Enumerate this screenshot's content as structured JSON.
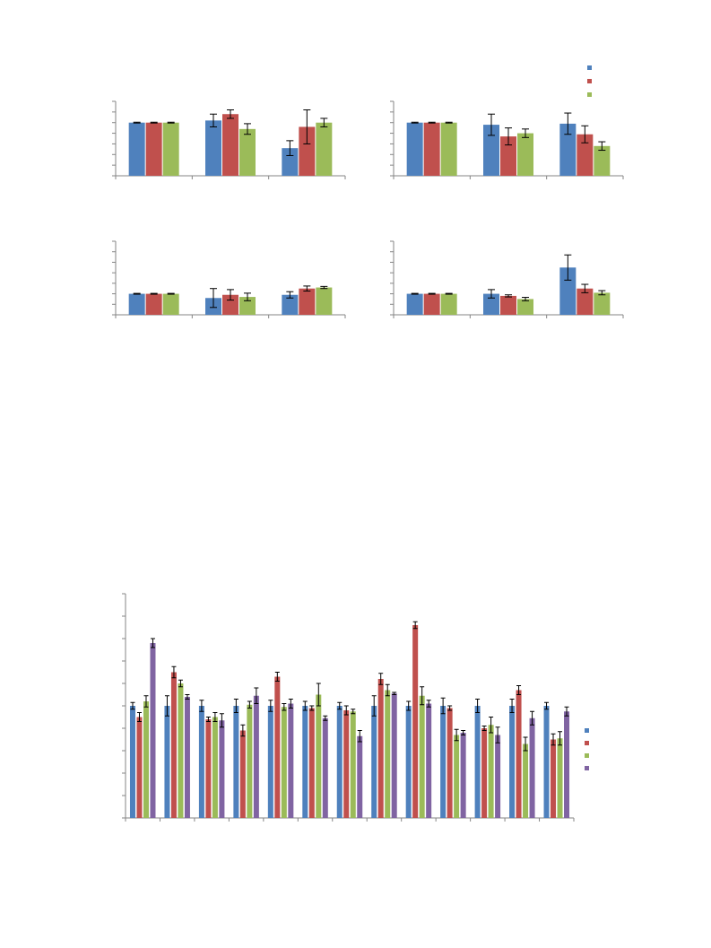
{
  "colors": {
    "blue": "#4F81BD",
    "red": "#C0504D",
    "green": "#9BBB59",
    "purple": "#8064A2"
  },
  "legend_top": {
    "items": [
      {
        "color": "#4F81BD",
        "label": ""
      },
      {
        "color": "#C0504D",
        "label": ""
      },
      {
        "color": "#9BBB59",
        "label": ""
      }
    ]
  },
  "legend_bottom": {
    "items": [
      {
        "color": "#4F81BD",
        "label": ""
      },
      {
        "color": "#C0504D",
        "label": ""
      },
      {
        "color": "#9BBB59",
        "label": ""
      },
      {
        "color": "#8064A2",
        "label": ""
      }
    ]
  },
  "chart_data": [
    {
      "type": "bar",
      "title": "",
      "xlabel": "",
      "ylabel": "",
      "ylim": [
        0,
        3.5
      ],
      "grid": false,
      "yticks": 7,
      "tick_labels_shown": false,
      "categories": [
        "",
        "",
        ""
      ],
      "series": [
        {
          "color": "#4F81BD",
          "values": [
            2.5,
            2.6,
            1.3
          ],
          "errors": [
            0.02,
            0.3,
            0.35
          ]
        },
        {
          "color": "#C0504D",
          "values": [
            2.5,
            2.9,
            2.3
          ],
          "errors": [
            0.02,
            0.2,
            0.8
          ]
        },
        {
          "color": "#9BBB59",
          "values": [
            2.5,
            2.2,
            2.5
          ],
          "errors": [
            0.02,
            0.25,
            0.2
          ]
        }
      ]
    },
    {
      "type": "bar",
      "title": "",
      "xlabel": "",
      "ylabel": "",
      "ylim": [
        0,
        3.5
      ],
      "grid": false,
      "yticks": 7,
      "tick_labels_shown": false,
      "categories": [
        "",
        "",
        ""
      ],
      "series": [
        {
          "color": "#4F81BD",
          "values": [
            2.5,
            2.4,
            2.45
          ],
          "errors": [
            0.02,
            0.5,
            0.5
          ]
        },
        {
          "color": "#C0504D",
          "values": [
            2.5,
            1.85,
            1.95
          ],
          "errors": [
            0.02,
            0.4,
            0.4
          ]
        },
        {
          "color": "#9BBB59",
          "values": [
            2.5,
            2.0,
            1.4
          ],
          "errors": [
            0.02,
            0.2,
            0.2
          ]
        }
      ]
    },
    {
      "type": "bar",
      "title": "",
      "xlabel": "",
      "ylabel": "",
      "ylim": [
        0,
        3.5
      ],
      "grid": false,
      "yticks": 7,
      "tick_labels_shown": false,
      "categories": [
        "",
        "",
        ""
      ],
      "series": [
        {
          "color": "#4F81BD",
          "values": [
            1.0,
            0.8,
            0.95
          ],
          "errors": [
            0.02,
            0.45,
            0.15
          ]
        },
        {
          "color": "#C0504D",
          "values": [
            1.0,
            0.95,
            1.25
          ],
          "errors": [
            0.02,
            0.25,
            0.12
          ]
        },
        {
          "color": "#9BBB59",
          "values": [
            1.0,
            0.85,
            1.3
          ],
          "errors": [
            0.02,
            0.18,
            0.05
          ]
        }
      ]
    },
    {
      "type": "bar",
      "title": "",
      "xlabel": "",
      "ylabel": "",
      "ylim": [
        0,
        3.5
      ],
      "grid": false,
      "yticks": 7,
      "tick_labels_shown": false,
      "categories": [
        "",
        "",
        ""
      ],
      "series": [
        {
          "color": "#4F81BD",
          "values": [
            1.0,
            1.0,
            2.25
          ],
          "errors": [
            0.02,
            0.2,
            0.6
          ]
        },
        {
          "color": "#C0504D",
          "values": [
            1.0,
            0.9,
            1.25
          ],
          "errors": [
            0.02,
            0.05,
            0.2
          ]
        },
        {
          "color": "#9BBB59",
          "values": [
            1.0,
            0.75,
            1.05
          ],
          "errors": [
            0.02,
            0.08,
            0.1
          ]
        }
      ]
    },
    {
      "type": "bar",
      "title": "",
      "xlabel": "",
      "ylabel": "",
      "ylim": [
        0,
        10
      ],
      "grid": false,
      "yticks": 10,
      "tick_labels_shown": false,
      "categories": [
        "",
        "",
        "",
        "",
        "",
        "",
        "",
        "",
        "",
        "",
        "",
        "",
        ""
      ],
      "series": [
        {
          "color": "#4F81BD",
          "values": [
            5.0,
            5.0,
            5.0,
            5.0,
            5.0,
            5.0,
            5.0,
            5.0,
            5.0,
            5.0,
            5.0,
            5.0,
            5.0
          ],
          "errors": [
            0.15,
            0.45,
            0.25,
            0.3,
            0.25,
            0.2,
            0.15,
            0.45,
            0.2,
            0.35,
            0.3,
            0.3,
            0.15
          ]
        },
        {
          "color": "#C0504D",
          "values": [
            4.5,
            6.5,
            4.4,
            3.9,
            6.3,
            4.9,
            4.8,
            6.2,
            8.6,
            4.9,
            4.0,
            5.7,
            3.5
          ],
          "errors": [
            0.2,
            0.25,
            0.1,
            0.25,
            0.2,
            0.1,
            0.2,
            0.25,
            0.15,
            0.1,
            0.1,
            0.2,
            0.25
          ]
        },
        {
          "color": "#9BBB59",
          "values": [
            5.2,
            6.0,
            4.5,
            5.05,
            4.95,
            5.5,
            4.75,
            5.7,
            5.45,
            3.7,
            4.15,
            3.3,
            3.55
          ],
          "errors": [
            0.25,
            0.15,
            0.2,
            0.15,
            0.15,
            0.5,
            0.1,
            0.25,
            0.4,
            0.25,
            0.35,
            0.3,
            0.3
          ]
        },
        {
          "color": "#8064A2",
          "values": [
            7.8,
            5.4,
            4.35,
            5.45,
            5.1,
            4.45,
            3.65,
            5.55,
            5.1,
            3.8,
            3.7,
            4.45,
            4.75
          ],
          "errors": [
            0.2,
            0.1,
            0.3,
            0.35,
            0.2,
            0.1,
            0.25,
            0.05,
            0.15,
            0.1,
            0.35,
            0.3,
            0.2
          ]
        }
      ]
    }
  ]
}
